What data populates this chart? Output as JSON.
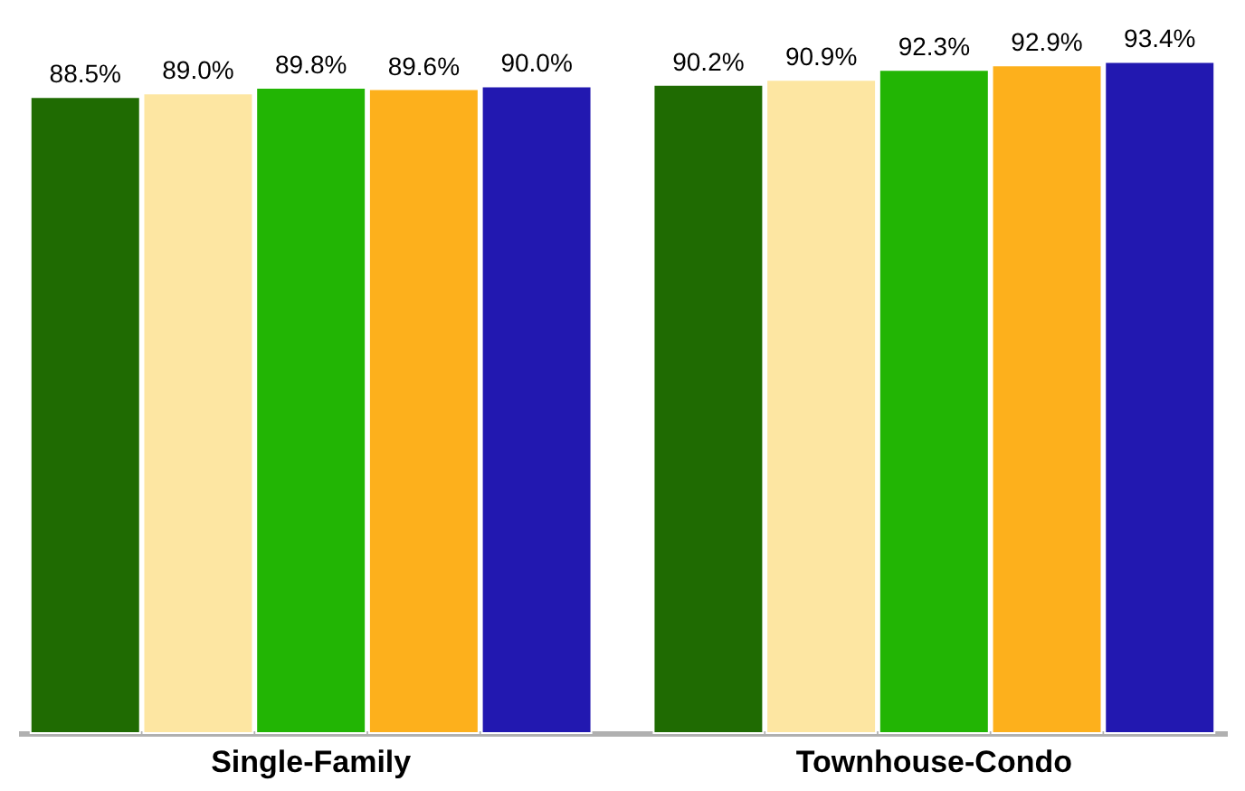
{
  "chart_data": {
    "type": "bar",
    "categories": [
      "Single-Family",
      "Townhouse-Condo"
    ],
    "tick_labels": "x",
    "grid": false,
    "series": [
      {
        "color": "#1f6b02",
        "values": [
          88.5,
          90.2
        ],
        "value_labels": [
          "88.5%",
          "90.2%"
        ]
      },
      {
        "color": "#fde6a2",
        "values": [
          89.0,
          90.9
        ],
        "value_labels": [
          "89.0%",
          "90.9%"
        ]
      },
      {
        "color": "#22b504",
        "values": [
          89.8,
          92.3
        ],
        "value_labels": [
          "89.8%",
          "92.3%"
        ]
      },
      {
        "color": "#fdb01c",
        "values": [
          89.6,
          92.9
        ],
        "value_labels": [
          "89.6%",
          "92.9%"
        ]
      },
      {
        "color": "#2218b0",
        "values": [
          90.0,
          93.4
        ],
        "value_labels": [
          "90.0%",
          "93.4%"
        ]
      }
    ]
  }
}
